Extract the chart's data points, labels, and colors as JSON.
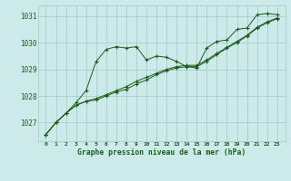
{
  "title": "Graphe pression niveau de la mer (hPa)",
  "hours": [
    0,
    1,
    2,
    3,
    4,
    5,
    6,
    7,
    8,
    9,
    10,
    11,
    12,
    13,
    14,
    15,
    16,
    17,
    18,
    19,
    20,
    21,
    22,
    23
  ],
  "ylim": [
    1026.3,
    1031.4
  ],
  "yticks": [
    1027,
    1028,
    1029,
    1030,
    1031
  ],
  "background_color": "#cceaea",
  "grid_color": "#aacccc",
  "line_color": "#1a5c1a",
  "series": {
    "s_spike": [
      1026.55,
      1027.0,
      1027.35,
      1027.75,
      1028.2,
      1029.3,
      1029.75,
      1029.85,
      1029.8,
      1029.85,
      1029.35,
      1029.5,
      1029.45,
      1029.3,
      1029.1,
      1029.05,
      1029.8,
      1030.05,
      1030.1,
      1030.5,
      1030.55,
      1031.05,
      1031.1,
      1031.05
    ],
    "s_diag1": [
      1026.55,
      1027.0,
      1027.35,
      1027.65,
      1027.8,
      1027.85,
      1028.0,
      1028.15,
      1028.25,
      1028.45,
      1028.6,
      1028.8,
      1028.95,
      1029.05,
      1029.1,
      1029.1,
      1029.3,
      1029.55,
      1029.8,
      1030.0,
      1030.25,
      1030.55,
      1030.75,
      1030.9
    ],
    "s_diag2": [
      1026.55,
      1027.0,
      1027.35,
      1027.65,
      1027.8,
      1027.9,
      1028.05,
      1028.2,
      1028.35,
      1028.55,
      1028.7,
      1028.85,
      1029.0,
      1029.1,
      1029.15,
      1029.15,
      1029.35,
      1029.6,
      1029.82,
      1030.05,
      1030.28,
      1030.58,
      1030.78,
      1030.93
    ]
  }
}
